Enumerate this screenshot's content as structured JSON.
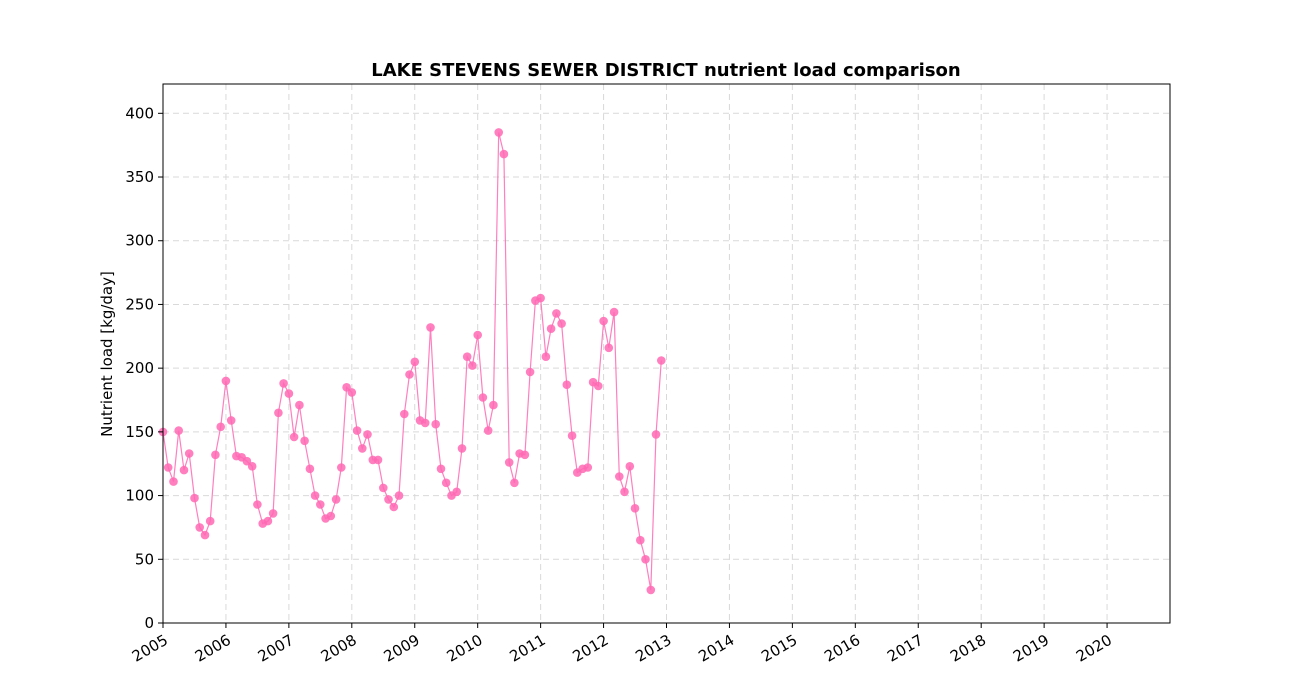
{
  "chart_data": {
    "type": "line",
    "title": "LAKE STEVENS SEWER DISTRICT nutrient load comparison",
    "xlabel": "",
    "ylabel": "Nutrient load [kg/day]",
    "xlim": [
      "2005-01-01",
      "2020-12-31"
    ],
    "ylim": [
      0,
      423
    ],
    "yticks": [
      0,
      50,
      100,
      150,
      200,
      250,
      300,
      350,
      400
    ],
    "xticks": [
      "2005",
      "2006",
      "2007",
      "2008",
      "2009",
      "2010",
      "2011",
      "2012",
      "2013",
      "2014",
      "2015",
      "2016",
      "2017",
      "2018",
      "2019",
      "2020"
    ],
    "grid": true,
    "series": [
      {
        "color": "#ff69b4",
        "marker": "circle",
        "x": [
          "2005-01",
          "2005-02",
          "2005-03",
          "2005-04",
          "2005-05",
          "2005-06",
          "2005-07",
          "2005-08",
          "2005-09",
          "2005-10",
          "2005-11",
          "2005-12",
          "2006-01",
          "2006-02",
          "2006-03",
          "2006-04",
          "2006-05",
          "2006-06",
          "2006-07",
          "2006-08",
          "2006-09",
          "2006-10",
          "2006-11",
          "2006-12",
          "2007-01",
          "2007-02",
          "2007-03",
          "2007-04",
          "2007-05",
          "2007-06",
          "2007-07",
          "2007-08",
          "2007-09",
          "2007-10",
          "2007-11",
          "2007-12",
          "2008-01",
          "2008-02",
          "2008-03",
          "2008-04",
          "2008-05",
          "2008-06",
          "2008-07",
          "2008-08",
          "2008-09",
          "2008-10",
          "2008-11",
          "2008-12",
          "2009-01",
          "2009-02",
          "2009-03",
          "2009-04",
          "2009-05",
          "2009-06",
          "2009-07",
          "2009-08",
          "2009-09",
          "2009-10",
          "2009-11",
          "2009-12",
          "2010-01",
          "2010-02",
          "2010-03",
          "2010-04",
          "2010-05",
          "2010-06",
          "2010-07",
          "2010-08",
          "2010-09",
          "2010-10",
          "2010-11",
          "2010-12",
          "2011-01",
          "2011-02",
          "2011-03",
          "2011-04",
          "2011-05",
          "2011-06",
          "2011-07",
          "2011-08",
          "2011-09",
          "2011-10",
          "2011-11",
          "2011-12",
          "2012-01",
          "2012-02",
          "2012-03",
          "2012-04",
          "2012-05",
          "2012-06",
          "2012-07",
          "2012-08",
          "2012-09",
          "2012-10",
          "2012-11",
          "2012-12"
        ],
        "values": [
          150,
          122,
          111,
          151,
          120,
          133,
          98,
          75,
          69,
          80,
          132,
          154,
          190,
          159,
          131,
          130,
          127,
          123,
          93,
          78,
          80,
          86,
          165,
          188,
          180,
          146,
          171,
          143,
          121,
          100,
          93,
          82,
          84,
          97,
          122,
          185,
          181,
          151,
          137,
          148,
          128,
          128,
          106,
          97,
          91,
          100,
          164,
          195,
          205,
          159,
          157,
          232,
          156,
          121,
          110,
          100,
          103,
          137,
          209,
          202,
          226,
          177,
          151,
          171,
          385,
          368,
          126,
          110,
          133,
          132,
          197,
          253,
          255,
          209,
          231,
          243,
          235,
          187,
          147,
          118,
          121,
          122,
          189,
          186,
          237,
          216,
          244,
          115,
          103,
          123,
          90,
          65,
          50,
          26,
          148,
          206
        ]
      }
    ]
  }
}
